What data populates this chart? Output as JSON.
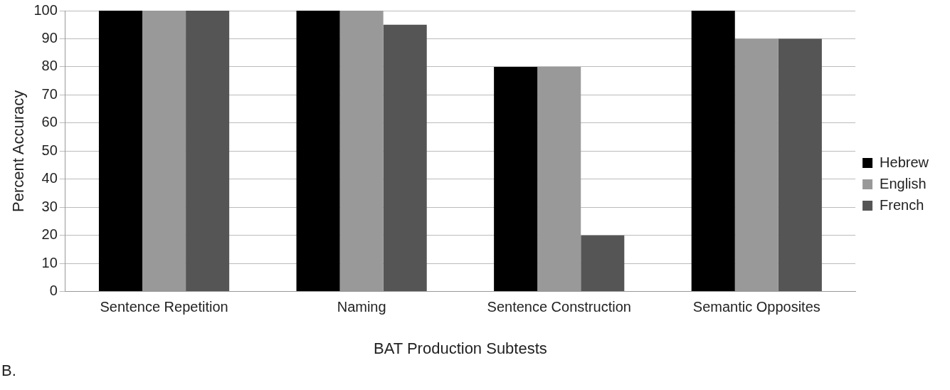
{
  "chart_data": {
    "type": "bar",
    "xlabel": "BAT Production Subtests",
    "ylabel": "Percent Accuracy",
    "annotations": [
      "B."
    ],
    "categories": [
      "Sentence Repetition",
      "Naming",
      "Sentence Construction",
      "Semantic Opposites"
    ],
    "series": [
      {
        "name": "Hebrew",
        "color": "#000000",
        "values": [
          100,
          100,
          80,
          100
        ]
      },
      {
        "name": "English",
        "color": "#999999",
        "values": [
          100,
          100,
          80,
          90
        ]
      },
      {
        "name": "French",
        "color": "#555555",
        "values": [
          100,
          95,
          20,
          90
        ]
      }
    ],
    "ylim": [
      0,
      100
    ],
    "yticks": [
      0,
      10,
      20,
      30,
      40,
      50,
      60,
      70,
      80,
      90,
      100
    ],
    "grid": "y",
    "legend": "right"
  }
}
